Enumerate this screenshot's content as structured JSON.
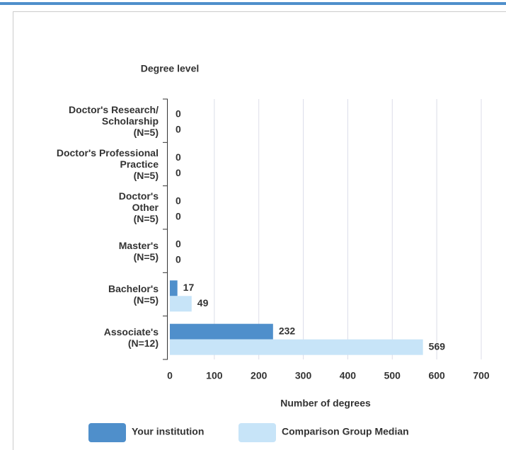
{
  "chart_data": {
    "type": "bar",
    "orientation": "horizontal",
    "title": "Degree level",
    "x_label": "Number of degrees",
    "categories": [
      "Doctor's Research/\nScholarship\n(N=5)",
      "Doctor's Professional\nPractice\n(N=5)",
      "Doctor's\nOther\n(N=5)",
      "Master's\n(N=5)",
      "Bachelor's\n(N=5)",
      "Associate's\n(N=12)"
    ],
    "series": [
      {
        "name": "Your institution",
        "color": "#4f8fcb",
        "values": [
          0,
          0,
          0,
          0,
          17,
          232
        ]
      },
      {
        "name": "Comparison Group Median",
        "color": "#c7e4f8",
        "values": [
          0,
          0,
          0,
          0,
          49,
          569
        ]
      }
    ],
    "xlim": [
      0,
      700
    ],
    "xticks": [
      0,
      100,
      200,
      300,
      400,
      500,
      600,
      700
    ],
    "grid": true
  }
}
